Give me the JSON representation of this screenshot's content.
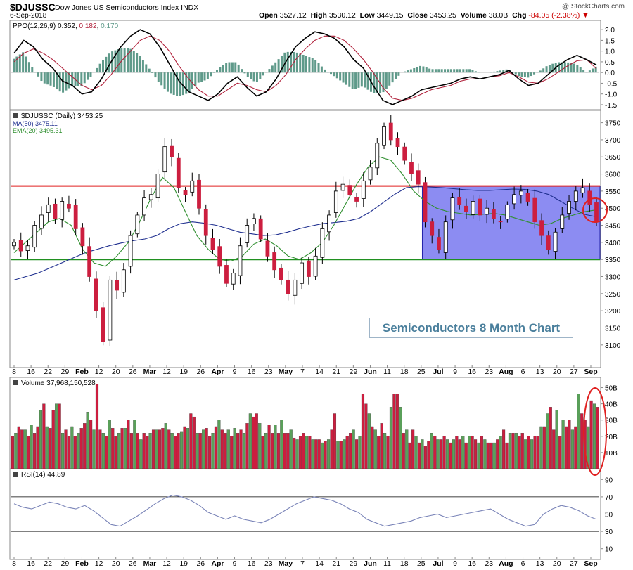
{
  "header": {
    "ticker": "$DJUSSC",
    "index_name": "Dow Jones US Semiconductors Index",
    "exchange": "INDX",
    "date": "6-Sep-2018",
    "open_label": "Open",
    "open": "3527.12",
    "high_label": "High",
    "high": "3530.12",
    "low_label": "Low",
    "low": "3449.15",
    "close_label": "Close",
    "close": "3453.25",
    "volume_label": "Volume",
    "volume": "38.0B",
    "chg_label": "Chg",
    "chg": "-84.05 (-2.38%)",
    "chg_arrow": "▼",
    "credit": "@ StockCharts.com"
  },
  "callout": "Semiconductors 8 Month Chart",
  "colors": {
    "up": "#5aa05a",
    "down": "#cc1e3f",
    "ma50": "#1f2f8f",
    "ema20": "#2f8f2f",
    "ppo": "#000000",
    "signal": "#b0203a",
    "hist": "#5f9a8a",
    "resistance": "#e02020",
    "support": "#209020",
    "box": "#6666ee",
    "rsi": "#7a84b8"
  },
  "chart_data": [
    {
      "type": "line",
      "panel": "PPO",
      "legend": [
        "PPO(12,26,9)",
        "0.352",
        "0.182",
        "0.170"
      ],
      "ylim": [
        -1.6,
        2.3
      ],
      "yticks": [
        "2.0",
        "1.5",
        "1.0",
        "0.5",
        "0.0",
        "-0.5",
        "-1.0",
        "-1.5"
      ],
      "series": [
        {
          "name": "PPO(12,26,9)",
          "values": [
            0.9,
            1.5,
            1.2,
            0.6,
            0.2,
            -0.4,
            -0.6,
            -1.0,
            -0.9,
            -0.3,
            0.5,
            1.2,
            1.7,
            2.0,
            1.8,
            1.2,
            0.4,
            -0.4,
            -0.9,
            -1.1,
            -1.3,
            -1.0,
            -0.5,
            -0.2,
            -0.7,
            -1.1,
            -0.9,
            -0.3,
            0.5,
            1.2,
            1.6,
            1.9,
            1.8,
            1.6,
            1.2,
            0.6,
            0.2,
            -0.6,
            -1.3,
            -1.5,
            -1.3,
            -1.1,
            -0.8,
            -0.7,
            -0.6,
            -0.5,
            -0.3,
            -0.2,
            -0.3,
            -0.2,
            -0.1,
            0.1,
            -0.3,
            -0.6,
            -0.5,
            -0.1,
            0.3,
            0.6,
            0.8,
            0.6,
            0.35
          ]
        },
        {
          "name": "signal",
          "values": [
            0.5,
            0.9,
            1.1,
            0.9,
            0.6,
            0.2,
            -0.2,
            -0.6,
            -0.8,
            -0.6,
            -0.1,
            0.5,
            1.0,
            1.5,
            1.7,
            1.5,
            1.0,
            0.3,
            -0.3,
            -0.8,
            -1.1,
            -1.1,
            -0.8,
            -0.5,
            -0.6,
            -0.8,
            -0.9,
            -0.6,
            -0.1,
            0.6,
            1.1,
            1.5,
            1.7,
            1.7,
            1.5,
            1.1,
            0.6,
            0.0,
            -0.7,
            -1.2,
            -1.3,
            -1.2,
            -1.0,
            -0.8,
            -0.7,
            -0.6,
            -0.4,
            -0.3,
            -0.3,
            -0.2,
            -0.15,
            0.0,
            -0.2,
            -0.45,
            -0.5,
            -0.3,
            0.0,
            0.3,
            0.55,
            0.6,
            0.18
          ]
        }
      ]
    },
    {
      "type": "candlestick",
      "panel": "price",
      "title": "$DJUSSC (Daily) 3453.25",
      "legend": [
        {
          "name": "$DJUSSC (Daily)",
          "value": "3453.25"
        },
        {
          "name": "MA(50)",
          "value": "3475.11"
        },
        {
          "name": "EMA(20)",
          "value": "3495.31"
        }
      ],
      "ylim": [
        3040,
        3780
      ],
      "yticks": [
        "3750",
        "3700",
        "3650",
        "3600",
        "3550",
        "3500",
        "3450",
        "3400",
        "3350",
        "3300",
        "3250",
        "3200",
        "3150",
        "3100"
      ],
      "closes": [
        3400,
        3375,
        3390,
        3450,
        3480,
        3510,
        3470,
        3520,
        3500,
        3440,
        3390,
        3300,
        3200,
        3110,
        3290,
        3260,
        3320,
        3420,
        3480,
        3530,
        3540,
        3600,
        3680,
        3650,
        3560,
        3540,
        3580,
        3500,
        3420,
        3380,
        3330,
        3280,
        3310,
        3390,
        3450,
        3470,
        3410,
        3360,
        3320,
        3290,
        3250,
        3290,
        3340,
        3300,
        3360,
        3440,
        3480,
        3550,
        3570,
        3540,
        3520,
        3580,
        3620,
        3690,
        3740,
        3700,
        3680,
        3640,
        3600,
        3570,
        3460,
        3420,
        3380,
        3460,
        3530,
        3510,
        3490,
        3520,
        3480,
        3500,
        3470,
        3460,
        3510,
        3540,
        3550,
        3520,
        3460,
        3420,
        3380,
        3430,
        3480,
        3520,
        3550,
        3560,
        3510,
        3460
      ],
      "resistance": 3565,
      "support": 3350,
      "range_box": {
        "y_top": 3565,
        "y_bottom": 3350
      },
      "ma50": [
        3290,
        3300,
        3310,
        3325,
        3340,
        3355,
        3370,
        3380,
        3390,
        3398,
        3405,
        3410,
        3420,
        3440,
        3455,
        3460,
        3456,
        3450,
        3440,
        3430,
        3425,
        3420,
        3422,
        3430,
        3440,
        3448,
        3455,
        3458,
        3462,
        3470,
        3490,
        3515,
        3540,
        3560,
        3563,
        3562,
        3560,
        3557,
        3554,
        3552,
        3552,
        3554,
        3556,
        3555,
        3550,
        3540,
        3520,
        3500,
        3482,
        3475
      ],
      "ema20": [
        3370,
        3400,
        3430,
        3460,
        3470,
        3450,
        3380,
        3340,
        3330,
        3360,
        3400,
        3460,
        3530,
        3590,
        3560,
        3490,
        3420,
        3380,
        3350,
        3345,
        3360,
        3395,
        3410,
        3390,
        3360,
        3350,
        3370,
        3400,
        3450,
        3510,
        3570,
        3620,
        3650,
        3640,
        3600,
        3550,
        3520,
        3500,
        3490,
        3485,
        3480,
        3482,
        3485,
        3480,
        3470,
        3460,
        3450,
        3455,
        3470,
        3480,
        3490,
        3495
      ]
    },
    {
      "type": "bar",
      "panel": "volume",
      "legend": [
        "Volume",
        "37,968,150,528"
      ],
      "yticks": [
        "50B",
        "40B",
        "30B",
        "20B",
        "10B"
      ],
      "ylim": [
        0,
        55
      ],
      "values": [
        20,
        22,
        26,
        24,
        24,
        20,
        27,
        22,
        26,
        36,
        40,
        26,
        25,
        36,
        40,
        40,
        22,
        24,
        20,
        26,
        20,
        22,
        25,
        28,
        35,
        30,
        24,
        52,
        24,
        22,
        20,
        30,
        25,
        20,
        22,
        25,
        25,
        30,
        22,
        30,
        22,
        18,
        22,
        20,
        22,
        24,
        24,
        24,
        25,
        28,
        24,
        22,
        20,
        22,
        23,
        26,
        25,
        34,
        32,
        22,
        22,
        24,
        25,
        20,
        22,
        26,
        30,
        24,
        22,
        24,
        20,
        25,
        22,
        24,
        22,
        28,
        34,
        32,
        34,
        28,
        20,
        22,
        27,
        22,
        27,
        22,
        30,
        22,
        22,
        24,
        19,
        18,
        20,
        22,
        20,
        20,
        18,
        18,
        18,
        16,
        17,
        18,
        24,
        34,
        17,
        17,
        18,
        20,
        22,
        24,
        18,
        20,
        46,
        40,
        34,
        26,
        24,
        20,
        28,
        22,
        20,
        38,
        46,
        46,
        38,
        22,
        24,
        16,
        24,
        20,
        16,
        18,
        14,
        17,
        22,
        20,
        18,
        18,
        20,
        18,
        16,
        18,
        20,
        18,
        20,
        16,
        20,
        20,
        18,
        16,
        20,
        18,
        16,
        16,
        16,
        18,
        20,
        24,
        16,
        22,
        22,
        22,
        20,
        22,
        18,
        20,
        18,
        20,
        20,
        26,
        26,
        34,
        38,
        24,
        36,
        20,
        30,
        26,
        30,
        24,
        26,
        46,
        34,
        30,
        26,
        42,
        40,
        38
      ]
    },
    {
      "type": "line",
      "panel": "RSI",
      "legend": [
        "RSI(14)",
        "44.89"
      ],
      "ylim": [
        0,
        100
      ],
      "yticks": [
        "90",
        "70",
        "50",
        "30",
        "10"
      ],
      "series": [
        {
          "name": "RSI(14)",
          "values": [
            62,
            58,
            56,
            60,
            64,
            62,
            58,
            56,
            60,
            54,
            46,
            38,
            36,
            42,
            48,
            55,
            62,
            68,
            72,
            70,
            66,
            60,
            52,
            48,
            44,
            48,
            44,
            42,
            40,
            44,
            50,
            56,
            62,
            66,
            70,
            68,
            66,
            62,
            56,
            52,
            44,
            40,
            36,
            38,
            40,
            42,
            46,
            48,
            50,
            46,
            48,
            50,
            52,
            54,
            56,
            50,
            44,
            40,
            36,
            38,
            50,
            56,
            60,
            58,
            54,
            48,
            44
          ]
        }
      ]
    }
  ],
  "x_axis": {
    "labels": [
      "8",
      "16",
      "22",
      "29",
      "Feb",
      "12",
      "20",
      "26",
      "Mar",
      "12",
      "19",
      "26",
      "Apr",
      "9",
      "16",
      "23",
      "May",
      "7",
      "14",
      "21",
      "29",
      "Jun",
      "11",
      "18",
      "25",
      "Jul",
      "9",
      "16",
      "23",
      "Aug",
      "6",
      "13",
      "20",
      "27",
      "Sep"
    ],
    "bold": [
      "Feb",
      "Mar",
      "Apr",
      "May",
      "Jun",
      "Jul",
      "Aug",
      "Sep"
    ]
  }
}
